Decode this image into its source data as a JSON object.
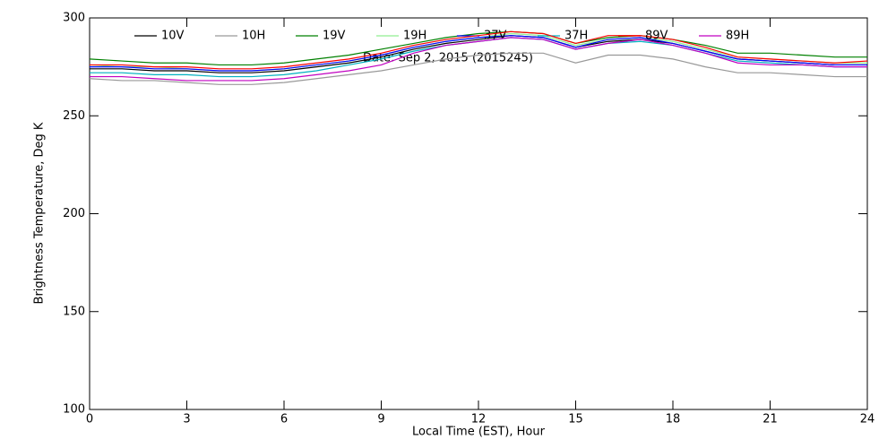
{
  "chart_data": {
    "type": "line",
    "annotation": "Date: Sep  2, 2015 (2015245)",
    "x_label": "Local Time (EST), Hour",
    "y_label": "Brightness Temperature, Deg K",
    "x": [
      0,
      1,
      2,
      3,
      4,
      5,
      6,
      7,
      8,
      9,
      10,
      11,
      12,
      13,
      14,
      15,
      16,
      17,
      18,
      19,
      20,
      21,
      22,
      23,
      24
    ],
    "xlim": [
      0,
      24
    ],
    "xticks": [
      0,
      3,
      6,
      9,
      12,
      15,
      18,
      21,
      24
    ],
    "ylim": [
      100,
      300
    ],
    "yticks": [
      100,
      150,
      200,
      250,
      300
    ],
    "series": [
      {
        "name": "10V",
        "color": "#000000",
        "values": [
          274,
          274,
          273,
          273,
          272,
          272,
          273,
          275,
          277,
          280,
          284,
          287,
          289,
          291,
          290,
          285,
          288,
          289,
          287,
          283,
          279,
          278,
          277,
          276,
          276
        ]
      },
      {
        "name": "10H",
        "color": "#999999",
        "values": [
          269,
          268,
          268,
          267,
          266,
          266,
          267,
          269,
          271,
          273,
          276,
          279,
          281,
          282,
          282,
          277,
          281,
          281,
          279,
          275,
          272,
          272,
          271,
          270,
          270
        ]
      },
      {
        "name": "19V",
        "color": "#008000",
        "values": [
          279,
          278,
          277,
          277,
          276,
          276,
          277,
          279,
          281,
          284,
          287,
          290,
          292,
          293,
          292,
          287,
          290,
          291,
          289,
          286,
          282,
          282,
          281,
          280,
          280
        ]
      },
      {
        "name": "19H",
        "color": "#90ee90",
        "values": [
          276,
          275,
          275,
          274,
          273,
          273,
          274,
          276,
          278,
          281,
          285,
          288,
          290,
          292,
          291,
          286,
          289,
          290,
          288,
          284,
          280,
          279,
          278,
          277,
          277
        ]
      },
      {
        "name": "37V",
        "color": "#0000ff",
        "values": [
          275,
          275,
          274,
          274,
          273,
          273,
          274,
          276,
          278,
          281,
          285,
          288,
          290,
          291,
          290,
          285,
          289,
          290,
          287,
          283,
          279,
          278,
          277,
          276,
          276
        ]
      },
      {
        "name": "37H",
        "color": "#00b0c0",
        "values": [
          272,
          272,
          271,
          271,
          270,
          270,
          271,
          273,
          276,
          279,
          283,
          286,
          288,
          290,
          289,
          284,
          287,
          288,
          286,
          282,
          278,
          277,
          276,
          275,
          275
        ]
      },
      {
        "name": "89V",
        "color": "#ff0000",
        "values": [
          276,
          276,
          275,
          275,
          274,
          274,
          275,
          277,
          279,
          282,
          286,
          289,
          291,
          293,
          292,
          287,
          291,
          291,
          289,
          285,
          280,
          279,
          278,
          277,
          278
        ]
      },
      {
        "name": "89H",
        "color": "#c000c0",
        "values": [
          270,
          270,
          269,
          268,
          268,
          268,
          269,
          271,
          273,
          276,
          282,
          286,
          288,
          290,
          289,
          284,
          287,
          289,
          286,
          282,
          277,
          276,
          276,
          275,
          275
        ]
      }
    ]
  }
}
